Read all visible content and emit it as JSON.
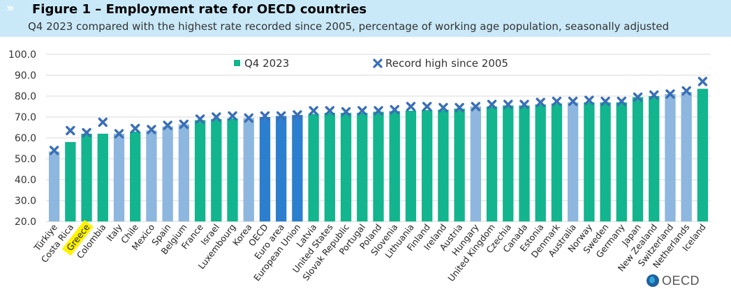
{
  "header": {
    "chevron": "»",
    "title": "Figure 1 – Employment rate for OECD countries",
    "subtitle": "Q4 2023 compared with the highest rate recorded since 2005, percentage of working age population, seasonally adjusted"
  },
  "logo": {
    "icon": "oecd-globe-icon",
    "text": "OECD"
  },
  "chart_data": {
    "type": "bar",
    "ylim": [
      20,
      100
    ],
    "yticks": [
      "20.0",
      "30.0",
      "40.0",
      "50.0",
      "60.0",
      "70.0",
      "80.0",
      "90.0",
      "100.0"
    ],
    "grid": true,
    "legend_position": "top-center",
    "highlighted_category": "Greece",
    "colors": {
      "light": "#8db7df",
      "teal": "#12b58e",
      "blue": "#2c7fce",
      "marker": "#3a6fb5",
      "highlight": "#fff300"
    },
    "categories": [
      "Türkiye",
      "Costa Rica",
      "Greece",
      "Colombia",
      "Italy",
      "Chile",
      "Mexico",
      "Spain",
      "Belgium",
      "France",
      "Israel",
      "Luxembourg",
      "Korea",
      "OECD",
      "Euro area",
      "European Union",
      "Latvia",
      "United States",
      "Slovak Republic",
      "Portugal",
      "Poland",
      "Slovenia",
      "Lithuania",
      "Finland",
      "Ireland",
      "Austria",
      "Hungary",
      "United Kingdom",
      "Czechia",
      "Canada",
      "Estonia",
      "Denmark",
      "Australia",
      "Norway",
      "Sweden",
      "Germany",
      "Japan",
      "New Zealand",
      "Switzerland",
      "Netherlands",
      "Iceland"
    ],
    "bar_colors": [
      "light",
      "teal",
      "teal",
      "teal",
      "light",
      "teal",
      "light",
      "light",
      "light",
      "teal",
      "teal",
      "teal",
      "light",
      "blue",
      "blue",
      "blue",
      "teal",
      "teal",
      "teal",
      "teal",
      "teal",
      "teal",
      "teal",
      "teal",
      "teal",
      "teal",
      "light",
      "teal",
      "teal",
      "teal",
      "teal",
      "teal",
      "light",
      "teal",
      "teal",
      "teal",
      "teal",
      "teal",
      "light",
      "light",
      "teal"
    ],
    "series": [
      {
        "name": "Q4 2023",
        "type": "bar",
        "values": [
          53.5,
          58,
          62,
          62,
          62,
          63,
          63.5,
          65.5,
          66.5,
          68.5,
          69,
          69.3,
          69.5,
          70,
          70.5,
          71,
          71.5,
          72,
          72,
          72,
          72.5,
          72.8,
          73,
          73.3,
          73.5,
          74,
          75,
          75,
          75.5,
          75.5,
          76,
          76.5,
          77,
          77,
          77,
          77,
          79.5,
          80,
          81,
          82,
          83.5
        ]
      },
      {
        "name": "Record high since 2005",
        "type": "marker",
        "values": [
          54,
          63.5,
          62.5,
          67.5,
          62,
          64.5,
          64,
          66,
          66.5,
          69,
          70,
          70.5,
          69.5,
          70.5,
          70.5,
          71,
          73,
          73,
          72.5,
          73,
          73,
          73.5,
          75,
          75,
          74.5,
          74.5,
          75,
          76,
          76,
          76,
          77,
          77.5,
          77.5,
          78,
          77.5,
          77.5,
          79.5,
          80.5,
          81,
          82.5,
          87
        ]
      }
    ]
  }
}
